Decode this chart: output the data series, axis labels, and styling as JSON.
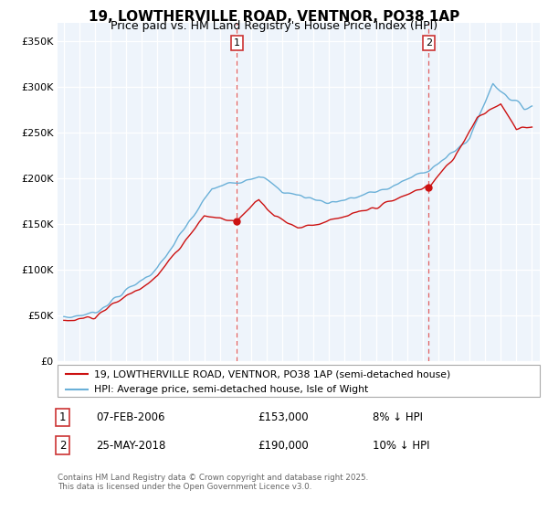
{
  "title": "19, LOWTHERVILLE ROAD, VENTNOR, PO38 1AP",
  "subtitle": "Price paid vs. HM Land Registry's House Price Index (HPI)",
  "legend_line1": "19, LOWTHERVILLE ROAD, VENTNOR, PO38 1AP (semi-detached house)",
  "legend_line2": "HPI: Average price, semi-detached house, Isle of Wight",
  "footnote": "Contains HM Land Registry data © Crown copyright and database right 2025.\nThis data is licensed under the Open Government Licence v3.0.",
  "sale1_label": "1",
  "sale1_date": "07-FEB-2006",
  "sale1_price": "£153,000",
  "sale1_note": "8% ↓ HPI",
  "sale2_label": "2",
  "sale2_date": "25-MAY-2018",
  "sale2_price": "£190,000",
  "sale2_note": "10% ↓ HPI",
  "vline1_x": 2006.08,
  "vline2_x": 2018.38,
  "sale1_y": 153000,
  "sale2_y": 190000,
  "hpi_color": "#6ab0d8",
  "price_color": "#cc1111",
  "vline_color": "#e06060",
  "dot_color": "#cc1111",
  "ylim_min": 0,
  "ylim_max": 370000,
  "yticks": [
    0,
    50000,
    100000,
    150000,
    200000,
    250000,
    300000,
    350000
  ],
  "ytick_labels": [
    "£0",
    "£50K",
    "£100K",
    "£150K",
    "£200K",
    "£250K",
    "£300K",
    "£350K"
  ],
  "xmin": 1994.6,
  "xmax": 2025.5,
  "plot_bg": "#eef4fb",
  "fig_bg": "#ffffff",
  "grid_color": "#ffffff",
  "title_fontsize": 11,
  "subtitle_fontsize": 9
}
